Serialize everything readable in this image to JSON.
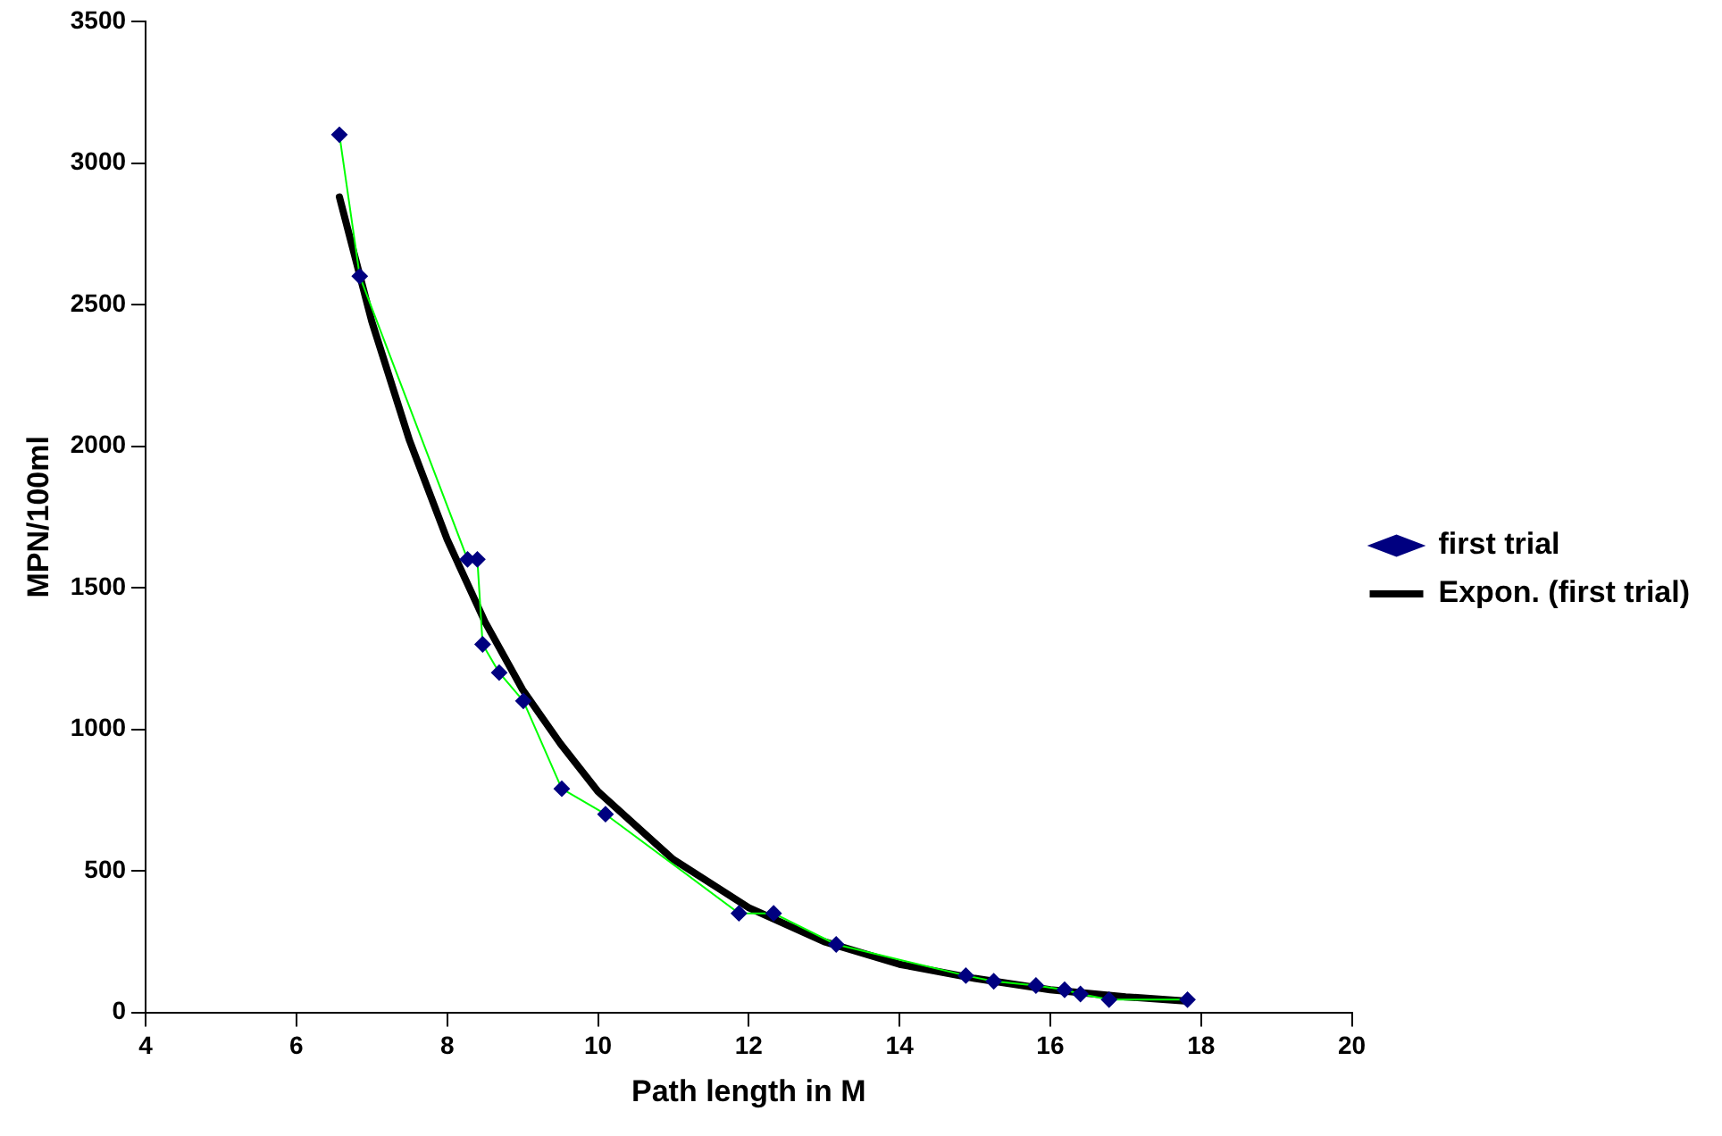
{
  "chart_data": {
    "type": "line",
    "xlabel": "Path length in M",
    "ylabel": "MPN/100ml",
    "xlim": [
      4,
      20
    ],
    "xticks": [
      4,
      6,
      8,
      10,
      12,
      14,
      16,
      18,
      20
    ],
    "ylim": [
      0,
      3500
    ],
    "yticks": [
      0,
      500,
      1000,
      1500,
      2000,
      2500,
      3000,
      3500
    ],
    "grid": false,
    "legend": "right",
    "marker": "diamond",
    "series": [
      {
        "name": "first trial",
        "color": "#00ff00",
        "x": [
          6.57,
          6.84,
          8.27,
          8.4,
          8.47,
          8.69,
          9.01,
          9.52,
          10.1,
          11.87,
          12.33,
          13.16,
          14.88,
          15.25,
          15.81,
          16.19,
          16.4,
          16.78,
          17.82
        ],
        "values": [
          3100,
          2600,
          1600,
          1600,
          1300,
          1200,
          1100,
          790,
          700,
          350,
          350,
          240,
          130,
          110,
          95,
          80,
          65,
          45,
          45
        ]
      },
      {
        "name": "Expon. (first trial)",
        "color": "#000000",
        "marker": "none",
        "x": [
          6.57,
          7,
          7.5,
          8,
          8.5,
          9,
          9.5,
          10,
          11,
          12,
          13,
          14,
          15,
          16,
          17,
          17.82
        ],
        "values": [
          2880,
          2440,
          2020,
          1670,
          1380,
          1140,
          950,
          780,
          540,
          370,
          250,
          170,
          120,
          80,
          55,
          40
        ]
      }
    ]
  }
}
